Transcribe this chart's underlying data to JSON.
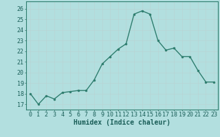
{
  "x": [
    0,
    1,
    2,
    3,
    4,
    5,
    6,
    7,
    8,
    9,
    10,
    11,
    12,
    13,
    14,
    15,
    16,
    17,
    18,
    19,
    20,
    21,
    22,
    23
  ],
  "y": [
    18.0,
    17.0,
    17.8,
    17.5,
    18.1,
    18.2,
    18.3,
    18.3,
    19.3,
    20.8,
    21.5,
    22.2,
    22.7,
    25.5,
    25.8,
    25.5,
    23.0,
    22.1,
    22.3,
    21.5,
    21.5,
    20.2,
    19.1,
    19.1
  ],
  "line_color": "#2e7d6e",
  "marker": "o",
  "markersize": 2.0,
  "linewidth": 1.0,
  "bg_color": "#b2dfdf",
  "grid_color": "#c8d8d8",
  "xlabel": "Humidex (Indice chaleur)",
  "ylabel_ticks": [
    17,
    18,
    19,
    20,
    21,
    22,
    23,
    24,
    25,
    26
  ],
  "xtick_labels": [
    "0",
    "1",
    "2",
    "3",
    "4",
    "5",
    "6",
    "7",
    "8",
    "9",
    "10",
    "11",
    "12",
    "13",
    "14",
    "15",
    "16",
    "17",
    "18",
    "19",
    "20",
    "21",
    "22",
    "23"
  ],
  "ylim": [
    16.5,
    26.7
  ],
  "xlim": [
    -0.5,
    23.5
  ],
  "xlabel_fontsize": 7,
  "tick_fontsize": 6,
  "xlabel_color": "#1a5e58",
  "tick_color": "#1a5e58",
  "spine_color": "#2e7d6e",
  "grid_major_color": "#d0e8e8",
  "grid_minor_color": "#e0f0f0"
}
